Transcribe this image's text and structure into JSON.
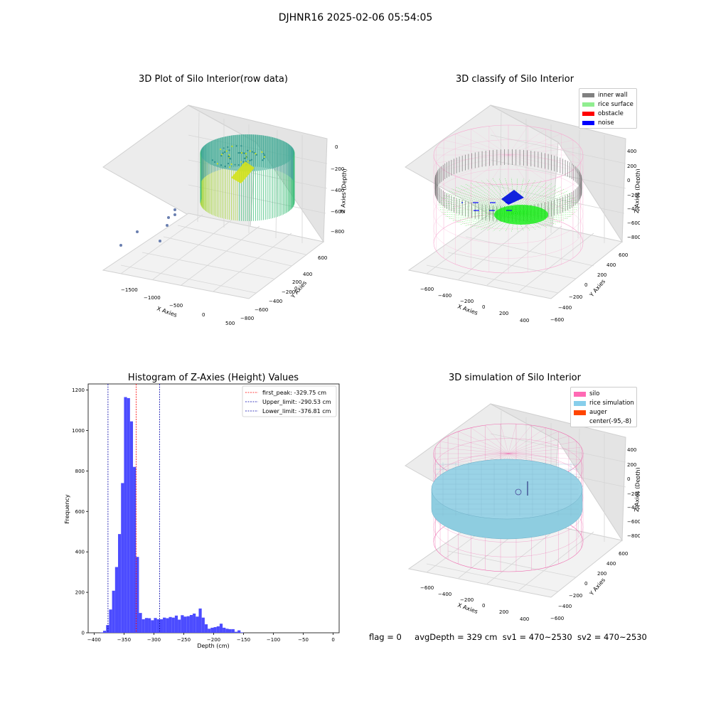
{
  "suptitle": "DJHNR16 2025-02-06 05:54:05",
  "panels": {
    "p1": {
      "title": "3D Plot of Silo Interior(row data)",
      "xlabel": "X Axies",
      "ylabel": "Y Axies",
      "zlabel": "Z Axies (Depth)",
      "x_ticks": [
        "−1500",
        "−1000",
        "−500",
        "0",
        "500"
      ],
      "y_ticks": [
        "600",
        "400",
        "200",
        "0",
        "−200",
        "−400",
        "−600",
        "−800"
      ],
      "z_ticks": [
        "0",
        "−200",
        "−400",
        "−600",
        "−800"
      ]
    },
    "p2": {
      "title": "3D classify of Silo Interior",
      "xlabel": "X Axies",
      "ylabel": "Y Axies",
      "zlabel": "Z Axies (Depth)",
      "x_ticks": [
        "−600",
        "−400",
        "−200",
        "0",
        "200",
        "400"
      ],
      "y_ticks": [
        "600",
        "400",
        "200",
        "0",
        "−200",
        "−400",
        "−600"
      ],
      "z_ticks": [
        "400",
        "200",
        "0",
        "−200",
        "−400",
        "−600",
        "−800"
      ],
      "legend": [
        {
          "label": "inner wall",
          "color": "#808080"
        },
        {
          "label": "rice surface",
          "color": "#90ee90"
        },
        {
          "label": "obstacle",
          "color": "#ff0000"
        },
        {
          "label": "noise",
          "color": "#0000ff"
        }
      ]
    },
    "p3": {
      "title": "Histogram of Z-Axies (Height) Values",
      "xlabel": "Depth (cm)",
      "ylabel": "Frequency",
      "legend": [
        {
          "label": "first_peak: -329.75 cm",
          "color": "#ff0000"
        },
        {
          "label": "Upper_limit: -290.53 cm",
          "color": "#0000aa"
        },
        {
          "label": "Lower_limit: -376.81 cm",
          "color": "#0000aa"
        }
      ]
    },
    "p4": {
      "title": "3D simulation of Silo Interior",
      "xlabel": "X Axies",
      "ylabel": "Y Axies",
      "zlabel": "Z Axies (Depth)",
      "x_ticks": [
        "−600",
        "−400",
        "−200",
        "0",
        "200",
        "400"
      ],
      "y_ticks": [
        "600",
        "400",
        "200",
        "0",
        "−200",
        "−400",
        "−600"
      ],
      "z_ticks": [
        "400",
        "200",
        "0",
        "−200",
        "−400",
        "−600",
        "−800"
      ],
      "legend": [
        {
          "label": "silo",
          "color": "#ff69b4"
        },
        {
          "label": "rice simulation",
          "color": "#87ceeb"
        },
        {
          "label": "auger",
          "color": "#ff4500"
        },
        {
          "label": "center(-95,-8)",
          "color": ""
        }
      ]
    }
  },
  "footer": {
    "flag": "flag = 0",
    "avg_depth": "avgDepth = 329 cm",
    "sv1": "sv1 = 470~2530",
    "sv2": "sv2 = 470~2530"
  },
  "chart_data": [
    {
      "type": "scatter",
      "title": "3D Plot of Silo Interior(row data)",
      "xlabel": "X Axies",
      "ylabel": "Y Axies",
      "zlabel": "Z Axies (Depth)",
      "xlim": [
        -1800,
        600
      ],
      "ylim": [
        -900,
        700
      ],
      "zlim": [
        -900,
        0
      ]
    },
    {
      "type": "scatter",
      "title": "3D classify of Silo Interior",
      "xlabel": "X Axies",
      "ylabel": "Y Axies",
      "zlabel": "Z Axies (Depth)",
      "xlim": [
        -700,
        500
      ],
      "ylim": [
        -700,
        700
      ],
      "zlim": [
        -900,
        450
      ],
      "series": [
        {
          "name": "inner wall",
          "color": "#808080"
        },
        {
          "name": "rice surface",
          "color": "#90ee90"
        },
        {
          "name": "obstacle",
          "color": "#ff0000"
        },
        {
          "name": "noise",
          "color": "#0000ff"
        }
      ],
      "legend_position": "top-right"
    },
    {
      "type": "bar",
      "title": "Histogram of Z-Axies (Height) Values",
      "xlabel": "Depth (cm)",
      "ylabel": "Frequency",
      "xlim": [
        -410,
        10
      ],
      "ylim": [
        0,
        1230
      ],
      "x_ticks": [
        -400,
        -350,
        -300,
        -250,
        -200,
        -150,
        -100,
        -50,
        0
      ],
      "y_ticks": [
        0,
        200,
        400,
        600,
        800,
        1000,
        1200
      ],
      "bin_width": 5,
      "bin_edges_start": -390,
      "values": [
        2,
        10,
        38,
        115,
        208,
        325,
        488,
        740,
        1165,
        1160,
        1045,
        820,
        375,
        98,
        67,
        73,
        72,
        62,
        73,
        67,
        67,
        75,
        72,
        78,
        75,
        85,
        65,
        87,
        80,
        82,
        88,
        95,
        80,
        120,
        75,
        42,
        20,
        25,
        28,
        32,
        45,
        25,
        20,
        18,
        18,
        5,
        12,
        2
      ],
      "series": [
        {
          "color": "#4c4cff"
        }
      ],
      "vlines": [
        {
          "name": "first_peak: -329.75 cm",
          "x": -329.75,
          "color": "#ff0000"
        },
        {
          "name": "Upper_limit: -290.53 cm",
          "x": -290.53,
          "color": "#0000aa"
        },
        {
          "name": "Lower_limit: -376.81 cm",
          "x": -376.81,
          "color": "#0000aa"
        }
      ],
      "legend_position": "top-right"
    },
    {
      "type": "scatter",
      "title": "3D simulation of Silo Interior",
      "xlabel": "X Axies",
      "ylabel": "Y Axies",
      "zlabel": "Z Axies (Depth)",
      "xlim": [
        -700,
        500
      ],
      "ylim": [
        -700,
        700
      ],
      "zlim": [
        -900,
        450
      ],
      "series": [
        {
          "name": "silo",
          "color": "#ff69b4"
        },
        {
          "name": "rice simulation",
          "color": "#87ceeb"
        },
        {
          "name": "auger",
          "color": "#ff4500"
        },
        {
          "name": "center(-95,-8)"
        }
      ],
      "legend_position": "top-right"
    }
  ]
}
